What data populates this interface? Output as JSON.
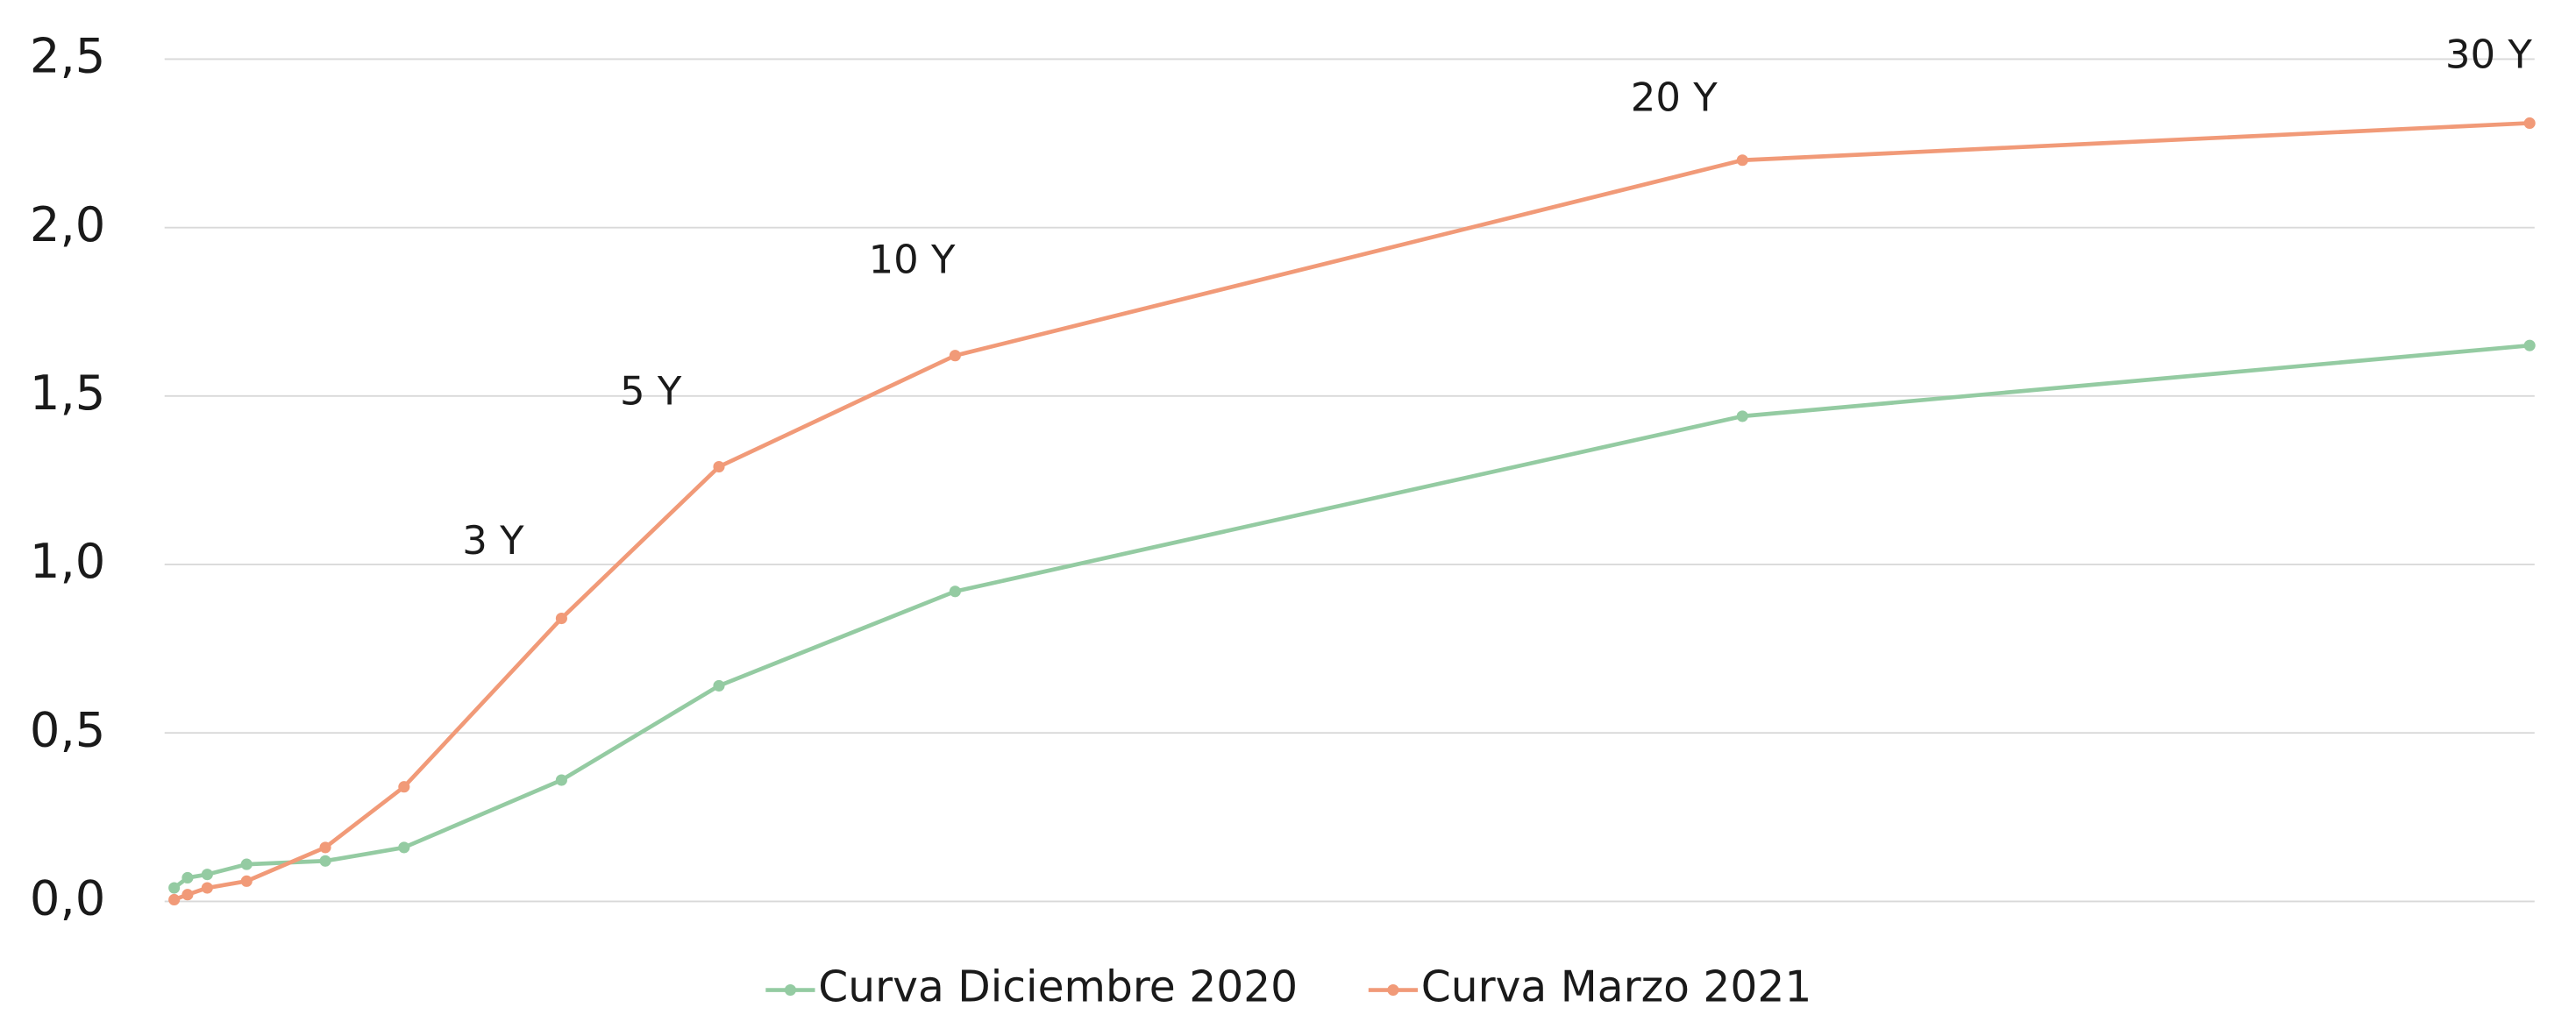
{
  "chart_data": {
    "type": "line",
    "x": [
      0.08,
      0.25,
      0.5,
      1,
      2,
      3,
      5,
      7,
      10,
      20,
      30
    ],
    "xlim": [
      0,
      30
    ],
    "series": [
      {
        "name": "Curva Diciembre 2020",
        "color": "#94cba2",
        "values": [
          0.04,
          0.07,
          0.08,
          0.11,
          0.12,
          0.16,
          0.36,
          0.64,
          0.92,
          1.44,
          1.65
        ]
      },
      {
        "name": "Curva Marzo 2021",
        "color": "#f19a78",
        "values": [
          0.005,
          0.02,
          0.04,
          0.06,
          0.16,
          0.34,
          0.84,
          1.29,
          1.62,
          2.2,
          2.31
        ]
      }
    ],
    "ylim": [
      0,
      2.5
    ],
    "yticks": [
      {
        "value": 0,
        "label": "0,0"
      },
      {
        "value": 0.5,
        "label": "0,5"
      },
      {
        "value": 1,
        "label": "1,0"
      },
      {
        "value": 1.5,
        "label": "1,5"
      },
      {
        "value": 2,
        "label": "2,0"
      },
      {
        "value": 2.5,
        "label": "2,5"
      }
    ],
    "grid": true,
    "legend": "bottom",
    "annotations": [
      "3 Y",
      "5 Y",
      "10 Y",
      "20 Y",
      "30 Y"
    ]
  }
}
